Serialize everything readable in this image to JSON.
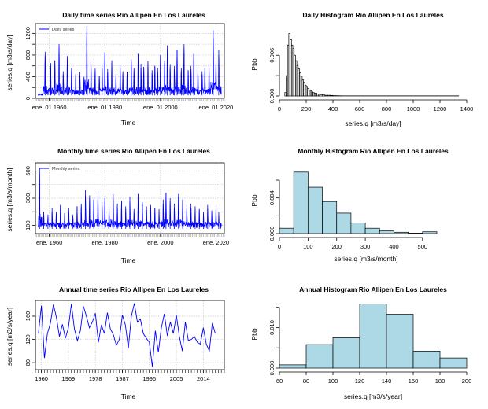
{
  "chart_data": [
    {
      "type": "line",
      "title": "Daily time series Rio Allipen En Los Laureles",
      "xlabel": "Time",
      "ylabel": "series.q [m3/s/day]",
      "legend": "Daily series",
      "legend_position": "top-left",
      "xlim": [
        1955,
        2023
      ],
      "ylim": [
        0,
        1380
      ],
      "x_ticks": [
        1960,
        1980,
        2000,
        2020
      ],
      "x_tick_labels": [
        "ene. 01 1960",
        "ene. 01 1980",
        "ene. 01 2000",
        "ene. 01 2020"
      ],
      "y_ticks": [
        0,
        200,
        400,
        600,
        800,
        1000,
        1200
      ],
      "y_tick_labels": [
        "0",
        "",
        "400",
        "",
        "800",
        "",
        "1200"
      ],
      "grid": true,
      "color": "#0000ff",
      "baseline": 55,
      "peaks": [
        {
          "x": 1958.5,
          "y": 860
        },
        {
          "x": 1960.5,
          "y": 650
        },
        {
          "x": 1962.0,
          "y": 700
        },
        {
          "x": 1963.5,
          "y": 1000
        },
        {
          "x": 1965.0,
          "y": 500
        },
        {
          "x": 1966.5,
          "y": 780
        },
        {
          "x": 1968.0,
          "y": 560
        },
        {
          "x": 1969.5,
          "y": 450
        },
        {
          "x": 1971.0,
          "y": 480
        },
        {
          "x": 1972.5,
          "y": 400
        },
        {
          "x": 1973.5,
          "y": 1340
        },
        {
          "x": 1975.0,
          "y": 700
        },
        {
          "x": 1976.5,
          "y": 550
        },
        {
          "x": 1978.0,
          "y": 420
        },
        {
          "x": 1979.0,
          "y": 620
        },
        {
          "x": 1980.0,
          "y": 850
        },
        {
          "x": 1981.0,
          "y": 540
        },
        {
          "x": 1982.5,
          "y": 700
        },
        {
          "x": 1984.0,
          "y": 450
        },
        {
          "x": 1985.5,
          "y": 600
        },
        {
          "x": 1986.5,
          "y": 500
        },
        {
          "x": 1988.0,
          "y": 480
        },
        {
          "x": 1989.5,
          "y": 720
        },
        {
          "x": 1990.5,
          "y": 560
        },
        {
          "x": 1992.0,
          "y": 820
        },
        {
          "x": 1993.0,
          "y": 640
        },
        {
          "x": 1994.0,
          "y": 580
        },
        {
          "x": 1995.5,
          "y": 690
        },
        {
          "x": 1997.0,
          "y": 520
        },
        {
          "x": 1998.0,
          "y": 600
        },
        {
          "x": 1999.0,
          "y": 560
        },
        {
          "x": 2000.0,
          "y": 800
        },
        {
          "x": 2001.5,
          "y": 700
        },
        {
          "x": 2002.5,
          "y": 980
        },
        {
          "x": 2003.5,
          "y": 620
        },
        {
          "x": 2005.0,
          "y": 600
        },
        {
          "x": 2006.0,
          "y": 900
        },
        {
          "x": 2007.5,
          "y": 560
        },
        {
          "x": 2008.5,
          "y": 1000
        },
        {
          "x": 2010.0,
          "y": 520
        },
        {
          "x": 2011.0,
          "y": 600
        },
        {
          "x": 2012.0,
          "y": 820
        },
        {
          "x": 2013.5,
          "y": 540
        },
        {
          "x": 2015.0,
          "y": 500
        },
        {
          "x": 2016.0,
          "y": 560
        },
        {
          "x": 2017.5,
          "y": 600
        },
        {
          "x": 2019.0,
          "y": 1260
        },
        {
          "x": 2020.0,
          "y": 700
        },
        {
          "x": 2021.0,
          "y": 900
        }
      ]
    },
    {
      "type": "bar",
      "title": "Daily Histogram Rio Allipen En Los Laureles",
      "xlabel": "series.q [m3/s/day]",
      "ylabel": "Pbb",
      "xlim": [
        0,
        1400
      ],
      "ylim": [
        0,
        0.0095
      ],
      "x_ticks": [
        0,
        200,
        400,
        600,
        800,
        1000,
        1200,
        1400
      ],
      "y_ticks": [
        0,
        0.003,
        0.006
      ],
      "y_tick_labels": [
        "0.000",
        "",
        "0.006"
      ],
      "bin_edges": [
        0,
        10,
        20,
        30,
        40,
        50,
        60,
        70,
        80,
        90,
        100,
        110,
        120,
        130,
        140,
        150,
        160,
        170,
        180,
        190,
        200,
        210,
        220,
        230,
        240,
        250,
        260,
        270,
        280,
        290,
        300,
        320,
        340,
        360,
        380,
        400,
        420,
        440,
        460,
        1340
      ],
      "values": [
        0,
        0,
        0,
        0,
        0.0005,
        0.003,
        0.0075,
        0.0092,
        0.0083,
        0.0075,
        0.007,
        0.006,
        0.0052,
        0.0045,
        0.004,
        0.0034,
        0.0029,
        0.0024,
        0.002,
        0.0016,
        0.0014,
        0.0011,
        0.0009,
        0.0008,
        0.0006,
        0.0005,
        0.0004,
        0.0004,
        0.0003,
        0.0003,
        0.0002,
        0.00015,
        0.0001,
        0.0001,
        8e-05,
        5e-05,
        4e-05,
        3e-05,
        2e-05
      ],
      "fill": "#ffffff",
      "stroke": "#000000"
    },
    {
      "type": "line",
      "title": "Monthly time series Rio Allipen En Los Laureles",
      "xlabel": "Time",
      "ylabel": "series.q [m3/s/month]",
      "legend": "Monthly series",
      "legend_position": "top-left",
      "xlim": [
        1955,
        2023
      ],
      "ylim": [
        40,
        560
      ],
      "x_ticks": [
        1960,
        1980,
        2000,
        2020
      ],
      "x_tick_labels": [
        "ene. 1960",
        "ene. 1980",
        "ene. 2000",
        "ene. 2020"
      ],
      "y_ticks": [
        100,
        200,
        300,
        400,
        500
      ],
      "y_tick_labels": [
        "100",
        "",
        "300",
        "",
        "500"
      ],
      "grid": true,
      "color": "#0000ff",
      "baseline": 75,
      "peaks": [
        {
          "x": 1956.5,
          "y": 520
        },
        {
          "x": 1958.0,
          "y": 200
        },
        {
          "x": 1959.5,
          "y": 180
        },
        {
          "x": 1961.0,
          "y": 230
        },
        {
          "x": 1962.5,
          "y": 200
        },
        {
          "x": 1964.0,
          "y": 250
        },
        {
          "x": 1965.5,
          "y": 190
        },
        {
          "x": 1967.0,
          "y": 230
        },
        {
          "x": 1968.5,
          "y": 180
        },
        {
          "x": 1970.0,
          "y": 240
        },
        {
          "x": 1971.5,
          "y": 260
        },
        {
          "x": 1973.0,
          "y": 360
        },
        {
          "x": 1974.5,
          "y": 320
        },
        {
          "x": 1976.0,
          "y": 290
        },
        {
          "x": 1977.5,
          "y": 340
        },
        {
          "x": 1979.0,
          "y": 270
        },
        {
          "x": 1980.0,
          "y": 300
        },
        {
          "x": 1981.5,
          "y": 240
        },
        {
          "x": 1983.0,
          "y": 330
        },
        {
          "x": 1984.5,
          "y": 260
        },
        {
          "x": 1986.0,
          "y": 280
        },
        {
          "x": 1987.5,
          "y": 240
        },
        {
          "x": 1989.0,
          "y": 310
        },
        {
          "x": 1990.5,
          "y": 220
        },
        {
          "x": 1992.0,
          "y": 330
        },
        {
          "x": 1993.5,
          "y": 270
        },
        {
          "x": 1995.0,
          "y": 240
        },
        {
          "x": 1996.5,
          "y": 250
        },
        {
          "x": 1998.0,
          "y": 230
        },
        {
          "x": 1999.5,
          "y": 220
        },
        {
          "x": 2001.0,
          "y": 290
        },
        {
          "x": 2002.0,
          "y": 340
        },
        {
          "x": 2003.5,
          "y": 300
        },
        {
          "x": 2005.0,
          "y": 260
        },
        {
          "x": 2006.5,
          "y": 330
        },
        {
          "x": 2008.0,
          "y": 290
        },
        {
          "x": 2009.5,
          "y": 250
        },
        {
          "x": 2011.0,
          "y": 260
        },
        {
          "x": 2012.5,
          "y": 240
        },
        {
          "x": 2014.0,
          "y": 220
        },
        {
          "x": 2015.5,
          "y": 200
        },
        {
          "x": 2017.0,
          "y": 250
        },
        {
          "x": 2018.5,
          "y": 210
        },
        {
          "x": 2020.0,
          "y": 240
        },
        {
          "x": 2021.0,
          "y": 200
        }
      ]
    },
    {
      "type": "bar",
      "title": "Monthly Histogram Rio Allipen En Los Laureles",
      "xlabel": "series.q [m3/s/month]",
      "ylabel": "Pbb",
      "xlim": [
        0,
        550
      ],
      "ylim": [
        0,
        0.0075
      ],
      "x_ticks": [
        0,
        100,
        200,
        300,
        400,
        500
      ],
      "y_ticks": [
        0,
        0.002,
        0.004,
        0.006
      ],
      "y_tick_labels": [
        "0.000",
        "",
        "0.004",
        ""
      ],
      "bin_edges": [
        0,
        50,
        100,
        150,
        200,
        250,
        300,
        350,
        400,
        450,
        500,
        550
      ],
      "values": [
        0.0006,
        0.0069,
        0.0052,
        0.0036,
        0.0023,
        0.0012,
        0.0006,
        0.0003,
        0.00015,
        5e-05,
        0.0002
      ],
      "fill": "#add8e6",
      "stroke": "#000000"
    },
    {
      "type": "line",
      "title": "Annual time series Rio Allipen En Los Laureles",
      "xlabel": "Time",
      "ylabel": "series.q [m3/s/year]",
      "xlim": [
        1958,
        2021
      ],
      "ylim": [
        68,
        187
      ],
      "x_ticks": [
        1960,
        1969,
        1978,
        1987,
        1996,
        2005,
        2014
      ],
      "x_tick_labels": [
        "1960",
        "1969",
        "1978",
        "1987",
        "1996",
        "2005",
        "2014"
      ],
      "y_ticks": [
        80,
        120,
        160
      ],
      "y_tick_labels": [
        "80",
        "120",
        "160"
      ],
      "grid": true,
      "color": "#0000ff",
      "x": [
        1959,
        1960,
        1961,
        1962,
        1963,
        1964,
        1965,
        1966,
        1967,
        1968,
        1969,
        1970,
        1971,
        1972,
        1973,
        1974,
        1975,
        1976,
        1977,
        1978,
        1979,
        1980,
        1981,
        1982,
        1983,
        1984,
        1985,
        1986,
        1987,
        1988,
        1989,
        1990,
        1991,
        1992,
        1993,
        1994,
        1995,
        1996,
        1997,
        1998,
        1999,
        2000,
        2001,
        2002,
        2003,
        2004,
        2005,
        2006,
        2007,
        2008,
        2009,
        2010,
        2011,
        2012,
        2013,
        2014,
        2015,
        2016,
        2017,
        2018
      ],
      "y": [
        130,
        178,
        88,
        130,
        148,
        180,
        158,
        125,
        146,
        122,
        140,
        181,
        138,
        118,
        135,
        177,
        160,
        140,
        150,
        165,
        115,
        145,
        130,
        166,
        138,
        128,
        110,
        120,
        162,
        145,
        105,
        160,
        182,
        150,
        155,
        130,
        122,
        115,
        73,
        135,
        98,
        140,
        164,
        126,
        150,
        130,
        162,
        125,
        100,
        150,
        118,
        120,
        125,
        115,
        112,
        140,
        112,
        100,
        148,
        130
      ]
    },
    {
      "type": "bar",
      "title": "Annual Histogram Rio Allipen En Los Laureles",
      "xlabel": "series.q [m3/s/year]",
      "ylabel": "Pbb",
      "xlim": [
        60,
        200
      ],
      "ylim": [
        0,
        0.0165
      ],
      "x_ticks": [
        60,
        80,
        100,
        120,
        140,
        160,
        180,
        200
      ],
      "y_ticks": [
        0,
        0.005,
        0.01,
        0.015
      ],
      "y_tick_labels": [
        "0.000",
        "",
        "0.010",
        ""
      ],
      "bin_edges": [
        60,
        80,
        100,
        120,
        140,
        160,
        180,
        200
      ],
      "values": [
        0.0008,
        0.0058,
        0.0075,
        0.0158,
        0.0133,
        0.0042,
        0.0025
      ],
      "fill": "#add8e6",
      "stroke": "#000000"
    }
  ]
}
